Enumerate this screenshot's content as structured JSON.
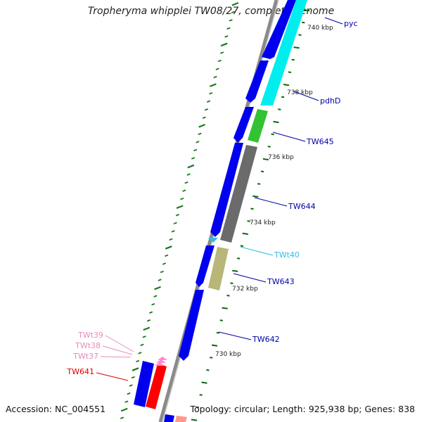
{
  "title": "Tropheryma whipplei TW08/27, complete genome",
  "accession": "Accession: NC_004551",
  "summary": "Topology: circular; Length: 925,938 bp; Genes: 838",
  "colors": {
    "backbone": "#8a8a8a",
    "cds_forward": "#0000ee",
    "tick": "#1a7a1a",
    "scale_tick": "#0a6a0a"
  },
  "scale_labels": [
    "740 kbp",
    "738 kbp",
    "736 kbp",
    "734 kbp",
    "732 kbp",
    "730 kbp"
  ],
  "gene_labels": [
    {
      "text": "pyc",
      "color": "#0000aa"
    },
    {
      "text": "pdhD",
      "color": "#0000aa"
    },
    {
      "text": "TW645",
      "color": "#0000aa"
    },
    {
      "text": "TW644",
      "color": "#0000aa"
    },
    {
      "text": "TWt40",
      "color": "#33bbe6"
    },
    {
      "text": "TW643",
      "color": "#0000aa"
    },
    {
      "text": "TW642",
      "color": "#0000aa"
    },
    {
      "text": "TWt39",
      "color": "#e98bbb"
    },
    {
      "text": "TWt38",
      "color": "#e98bbb"
    },
    {
      "text": "TWt37",
      "color": "#e98bbb"
    },
    {
      "text": "TW641",
      "color": "#dd0000"
    }
  ]
}
